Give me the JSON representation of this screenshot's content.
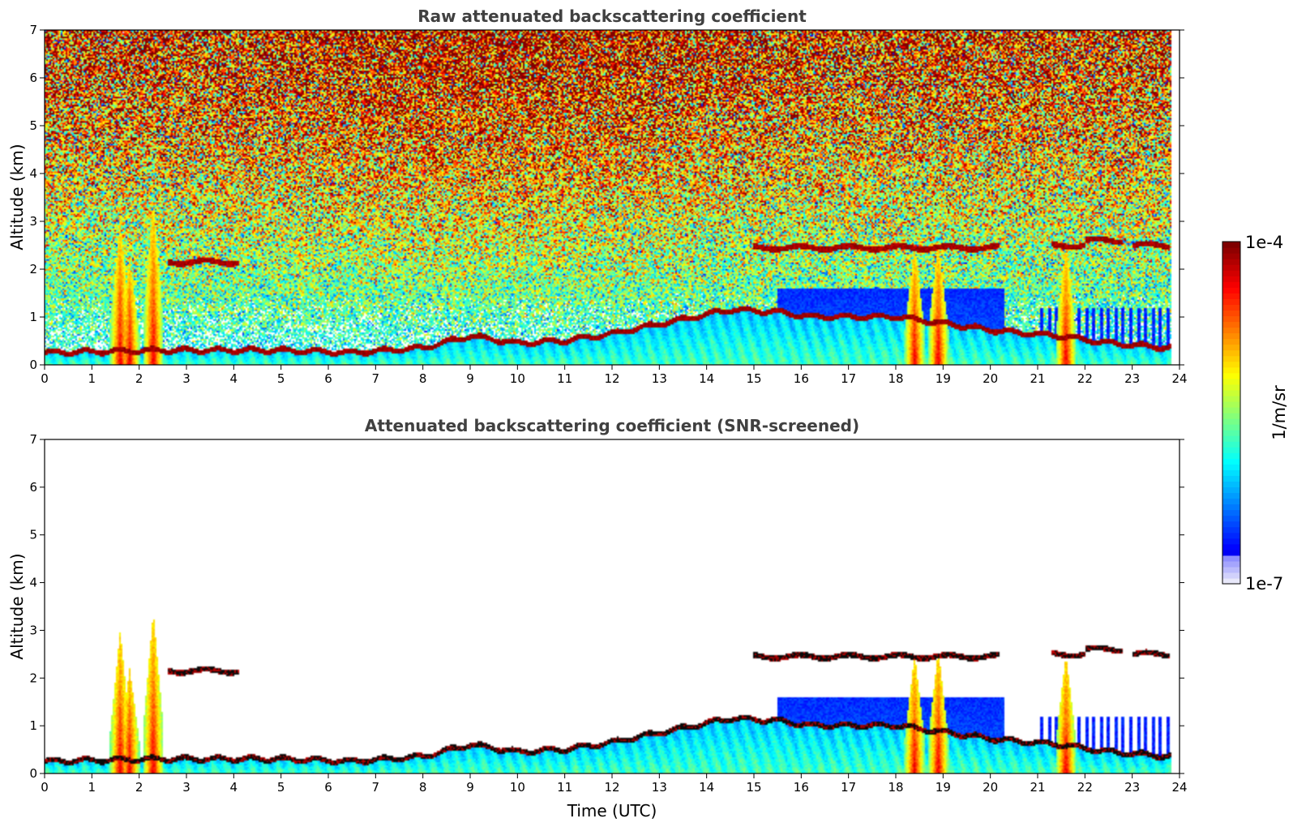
{
  "chart_data": [
    {
      "type": "heatmap",
      "title": "Raw attenuated backscattering coefficient",
      "xlabel": "",
      "ylabel": "Altitude (km)",
      "xlim": [
        0,
        24
      ],
      "ylim": [
        0,
        7
      ],
      "x_ticks": [
        "0",
        "1",
        "2",
        "3",
        "4",
        "5",
        "6",
        "7",
        "8",
        "9",
        "10",
        "11",
        "12",
        "13",
        "14",
        "15",
        "16",
        "17",
        "18",
        "19",
        "20",
        "21",
        "22",
        "23",
        "24"
      ],
      "y_ticks": [
        "0",
        "1",
        "2",
        "3",
        "4",
        "5",
        "6",
        "7"
      ],
      "screened": false
    },
    {
      "type": "heatmap",
      "title": "Attenuated backscattering coefficient (SNR-screened)",
      "xlabel": "Time (UTC)",
      "ylabel": "Altitude (km)",
      "xlim": [
        0,
        24
      ],
      "ylim": [
        0,
        7
      ],
      "x_ticks": [
        "0",
        "1",
        "2",
        "3",
        "4",
        "5",
        "6",
        "7",
        "8",
        "9",
        "10",
        "11",
        "12",
        "13",
        "14",
        "15",
        "16",
        "17",
        "18",
        "19",
        "20",
        "21",
        "22",
        "23",
        "24"
      ],
      "y_ticks": [
        "0",
        "1",
        "2",
        "3",
        "4",
        "5",
        "6",
        "7"
      ],
      "screened": true
    }
  ],
  "colorbar": {
    "max_label": "1e-4",
    "min_label": "1e-7",
    "unit_label": "1/m/sr",
    "scale": "log",
    "range": [
      1e-07,
      0.0001
    ]
  },
  "features": {
    "boundary_layer_top_km": [
      [
        0,
        0.25
      ],
      [
        2.5,
        0.3
      ],
      [
        5,
        0.3
      ],
      [
        6.5,
        0.25
      ],
      [
        8,
        0.35
      ],
      [
        9,
        0.6
      ],
      [
        10,
        0.45
      ],
      [
        11,
        0.5
      ],
      [
        12,
        0.65
      ],
      [
        13,
        0.85
      ],
      [
        14.5,
        1.15
      ],
      [
        15.5,
        1.1
      ],
      [
        16.2,
        1.0
      ],
      [
        18,
        1.0
      ],
      [
        20.2,
        0.7
      ],
      [
        21.5,
        0.6
      ],
      [
        22.5,
        0.45
      ],
      [
        23.8,
        0.35
      ]
    ],
    "cloud_layers": [
      {
        "t0": 15.0,
        "t1": 20.2,
        "alt_km": 2.45
      },
      {
        "t0": 21.3,
        "t1": 22.0,
        "alt_km": 2.5
      },
      {
        "t0": 22.0,
        "t1": 22.8,
        "alt_km": 2.6
      },
      {
        "t0": 23.0,
        "t1": 23.8,
        "alt_km": 2.5
      },
      {
        "t0": 2.6,
        "t1": 4.1,
        "alt_km": 2.15
      }
    ],
    "plumes": [
      {
        "t": 1.6,
        "top_km": 3.0
      },
      {
        "t": 1.8,
        "top_km": 2.2
      },
      {
        "t": 2.3,
        "top_km": 3.4
      },
      {
        "t": 18.4,
        "top_km": 2.5
      },
      {
        "t": 18.9,
        "top_km": 2.6
      },
      {
        "t": 21.6,
        "top_km": 2.5
      }
    ]
  }
}
